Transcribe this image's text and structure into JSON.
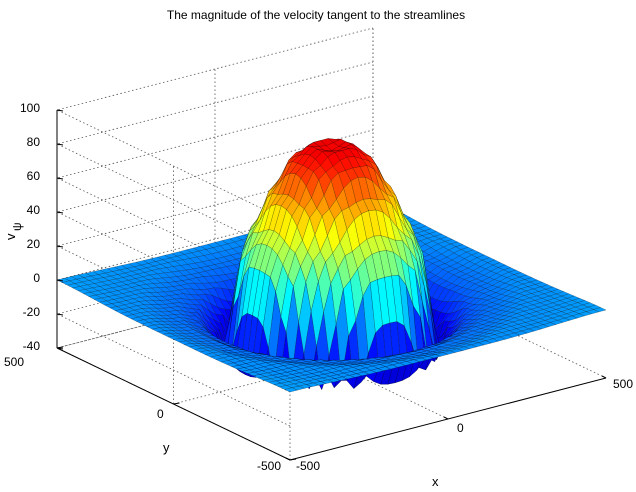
{
  "chart_data": {
    "type": "surface",
    "title": "The magnitude of the velocity tangent to the streamlines",
    "xlabel": "x",
    "ylabel": "y",
    "zlabel": "v",
    "zlabel_subscript": "ψ",
    "x_ticks": [
      "-500",
      "0",
      "500"
    ],
    "y_ticks": [
      "-500",
      "0",
      "500"
    ],
    "z_ticks": [
      "100",
      "80",
      "60",
      "40",
      "20",
      "0",
      "-20",
      "-40"
    ],
    "xlim": [
      -500,
      500
    ],
    "ylim": [
      -500,
      500
    ],
    "zlim": [
      -40,
      100
    ],
    "colormap": "jet",
    "grid": true,
    "surface_profile": {
      "r": [
        0,
        50,
        100,
        150,
        200,
        230,
        250,
        270,
        300,
        350,
        400,
        500,
        700
      ],
      "z": [
        85,
        88,
        80,
        62,
        40,
        25,
        0,
        -34,
        -20,
        -10,
        -6,
        -2,
        0
      ]
    },
    "colors": {
      "background": "#ffffff",
      "mesh_line": "#000000"
    }
  }
}
